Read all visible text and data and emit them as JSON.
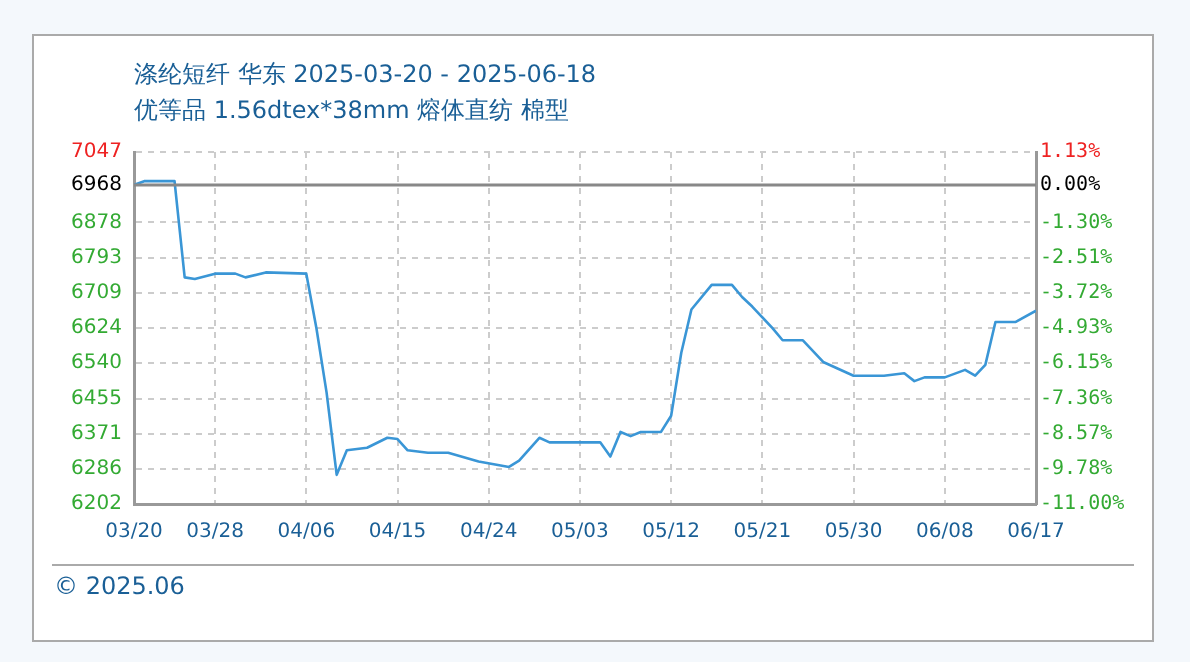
{
  "chart_data": {
    "type": "line",
    "title": "涤纶短纤 华东 2025-03-20 - 2025-06-18",
    "subtitle": "优等品 1.56dtex*38mm 熔体直纺 棉型",
    "annotations": [
      "© 2025.06"
    ],
    "x": [
      "2025-03-20",
      "2025-03-21",
      "2025-03-24",
      "2025-03-25",
      "2025-03-26",
      "2025-03-28",
      "2025-03-30",
      "2025-03-31",
      "2025-04-02",
      "2025-04-06",
      "2025-04-07",
      "2025-04-08",
      "2025-04-09",
      "2025-04-10",
      "2025-04-12",
      "2025-04-14",
      "2025-04-15",
      "2025-04-16",
      "2025-04-18",
      "2025-04-20",
      "2025-04-23",
      "2025-04-26",
      "2025-04-27",
      "2025-04-29",
      "2025-04-30",
      "2025-05-05",
      "2025-05-06",
      "2025-05-07",
      "2025-05-08",
      "2025-05-09",
      "2025-05-11",
      "2025-05-12",
      "2025-05-13",
      "2025-05-14",
      "2025-05-16",
      "2025-05-18",
      "2025-05-19",
      "2025-05-20",
      "2025-05-22",
      "2025-05-23",
      "2025-05-25",
      "2025-05-27",
      "2025-05-30",
      "2025-06-02",
      "2025-06-04",
      "2025-06-05",
      "2025-06-06",
      "2025-06-08",
      "2025-06-10",
      "2025-06-11",
      "2025-06-12",
      "2025-06-13",
      "2025-06-15",
      "2025-06-17"
    ],
    "series": [
      {
        "color": "#3a96d6",
        "values": [
          6968,
          6977,
          6977,
          6746,
          6742,
          6755,
          6755,
          6746,
          6758,
          6755,
          6624,
          6470,
          6272,
          6331,
          6337,
          6361,
          6358,
          6331,
          6325,
          6325,
          6304,
          6291,
          6306,
          6361,
          6350,
          6350,
          6316,
          6375,
          6365,
          6375,
          6375,
          6414,
          6565,
          6669,
          6728,
          6728,
          6699,
          6676,
          6624,
          6595,
          6595,
          6543,
          6510,
          6510,
          6516,
          6497,
          6506,
          6506,
          6524,
          6510,
          6536,
          6639,
          6639,
          6666
        ]
      }
    ],
    "xlim": [
      "2025-03-20",
      "2025-06-17"
    ],
    "xticks": [
      {
        "value": "2025-03-20",
        "label": "03/20"
      },
      {
        "value": "2025-03-28",
        "label": "03/28"
      },
      {
        "value": "2025-04-06",
        "label": "04/06"
      },
      {
        "value": "2025-04-15",
        "label": "04/15"
      },
      {
        "value": "2025-04-24",
        "label": "04/24"
      },
      {
        "value": "2025-05-03",
        "label": "05/03"
      },
      {
        "value": "2025-05-12",
        "label": "05/12"
      },
      {
        "value": "2025-05-21",
        "label": "05/21"
      },
      {
        "value": "2025-05-30",
        "label": "05/30"
      },
      {
        "value": "2025-06-08",
        "label": "06/08"
      },
      {
        "value": "2025-06-17",
        "label": "06/17"
      }
    ],
    "ylim": [
      6202,
      7047
    ],
    "yticks": [
      6202,
      6286,
      6371,
      6455,
      6540,
      6624,
      6709,
      6793,
      6878,
      6968,
      7047
    ],
    "y2lim": [
      -11.0,
      1.13
    ],
    "y2ticks": [
      {
        "value": -11.0,
        "label": "-11.00%"
      },
      {
        "value": -9.78,
        "label": "-9.78%"
      },
      {
        "value": -8.57,
        "label": "-8.57%"
      },
      {
        "value": -7.36,
        "label": "-7.36%"
      },
      {
        "value": -6.15,
        "label": "-6.15%"
      },
      {
        "value": -4.93,
        "label": "-4.93%"
      },
      {
        "value": -3.72,
        "label": "-3.72%"
      },
      {
        "value": -2.51,
        "label": "-2.51%"
      },
      {
        "value": -1.3,
        "label": "-1.30%"
      },
      {
        "value": 0,
        "label": "0.00%"
      },
      {
        "value": 1.13,
        "label": "1.13%"
      }
    ],
    "ref_lines": [
      {
        "axis": "y",
        "value": 6968,
        "color": "#888888"
      }
    ],
    "grid": true,
    "legend": false,
    "marker": "none",
    "line_style": "solid"
  }
}
